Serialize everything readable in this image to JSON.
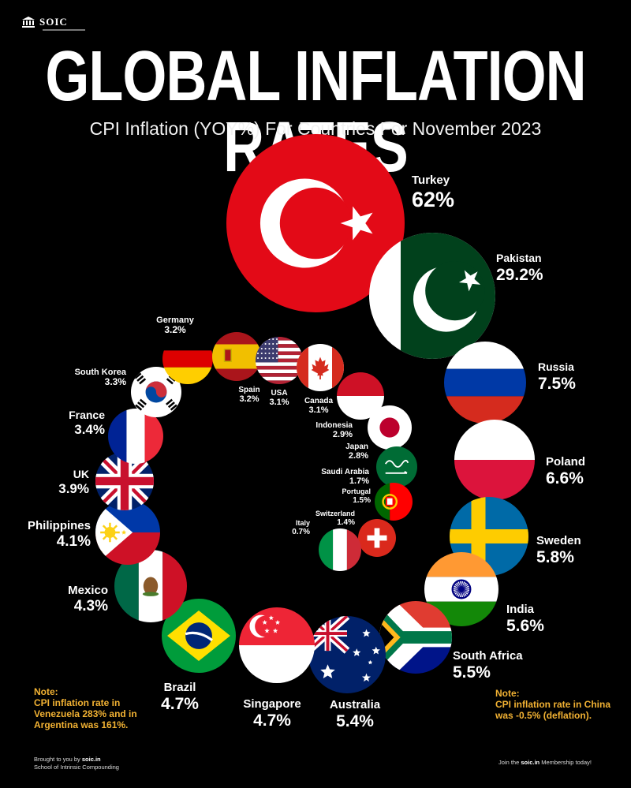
{
  "brand": {
    "logo_text": "SOIC"
  },
  "header": {
    "title": "GLOBAL INFLATION RATES",
    "subtitle": "CPI Inflation (YOY%) For Countries For November 2023"
  },
  "chart_data": {
    "type": "bubble",
    "title": "GLOBAL INFLATION RATES",
    "subtitle": "CPI Inflation (YOY%) For Countries For November 2023",
    "unit": "%",
    "items": [
      {
        "country": "Turkey",
        "label": "62%",
        "value": 62.0,
        "flag": "turkey-flag"
      },
      {
        "country": "Pakistan",
        "label": "29.2%",
        "value": 29.2,
        "flag": "pakistan-flag"
      },
      {
        "country": "Russia",
        "label": "7.5%",
        "value": 7.5,
        "flag": "russia-flag"
      },
      {
        "country": "Poland",
        "label": "6.6%",
        "value": 6.6,
        "flag": "poland-flag"
      },
      {
        "country": "Sweden",
        "label": "5.8%",
        "value": 5.8,
        "flag": "sweden-flag"
      },
      {
        "country": "India",
        "label": "5.6%",
        "value": 5.6,
        "flag": "india-flag"
      },
      {
        "country": "South Africa",
        "label": "5.5%",
        "value": 5.5,
        "flag": "south-africa-flag"
      },
      {
        "country": "Australia",
        "label": "5.4%",
        "value": 5.4,
        "flag": "australia-flag"
      },
      {
        "country": "Singapore",
        "label": "4.7%",
        "value": 4.7,
        "flag": "singapore-flag"
      },
      {
        "country": "Brazil",
        "label": "4.7%",
        "value": 4.7,
        "flag": "brazil-flag"
      },
      {
        "country": "Mexico",
        "label": "4.3%",
        "value": 4.3,
        "flag": "mexico-flag"
      },
      {
        "country": "Philippines",
        "label": "4.1%",
        "value": 4.1,
        "flag": "philippines-flag"
      },
      {
        "country": "UK",
        "label": "3.9%",
        "value": 3.9,
        "flag": "uk-flag"
      },
      {
        "country": "France",
        "label": "3.4%",
        "value": 3.4,
        "flag": "france-flag"
      },
      {
        "country": "South Korea",
        "label": "3.3%",
        "value": 3.3,
        "flag": "south-korea-flag"
      },
      {
        "country": "Germany",
        "label": "3.2%",
        "value": 3.2,
        "flag": "germany-flag"
      },
      {
        "country": "Spain",
        "label": "3.2%",
        "value": 3.2,
        "flag": "spain-flag"
      },
      {
        "country": "USA",
        "label": "3.1%",
        "value": 3.1,
        "flag": "usa-flag"
      },
      {
        "country": "Canada",
        "label": "3.1%",
        "value": 3.1,
        "flag": "canada-flag"
      },
      {
        "country": "Indonesia",
        "label": "2.9%",
        "value": 2.9,
        "flag": "indonesia-flag"
      },
      {
        "country": "Japan",
        "label": "2.8%",
        "value": 2.8,
        "flag": "japan-flag"
      },
      {
        "country": "Saudi Arabia",
        "label": "1.7%",
        "value": 1.7,
        "flag": "saudi-arabia-flag"
      },
      {
        "country": "Portugal",
        "label": "1.5%",
        "value": 1.5,
        "flag": "portugal-flag"
      },
      {
        "country": "Switzerland",
        "label": "1.4%",
        "value": 1.4,
        "flag": "switzerland-flag"
      },
      {
        "country": "Italy",
        "label": "0.7%",
        "value": 0.7,
        "flag": "italy-flag"
      }
    ]
  },
  "notes": {
    "left_heading": "Note:",
    "left_text": "CPI inflation rate in Venezuela 283% and in Argentina was 161%.",
    "right_heading": "Note:",
    "right_text": "CPI inflation rate in China was -0.5% (deflation)."
  },
  "footer": {
    "left_prefix": "Brought to you by ",
    "left_site": "soic.in",
    "left_line2": "School of Intrinsic Compounding",
    "right_prefix": "Join the ",
    "right_site": "soic.in",
    "right_suffix": " Membership today!"
  },
  "colors": {
    "background": "#000000",
    "note": "#f2b233",
    "text": "#ffffff"
  }
}
